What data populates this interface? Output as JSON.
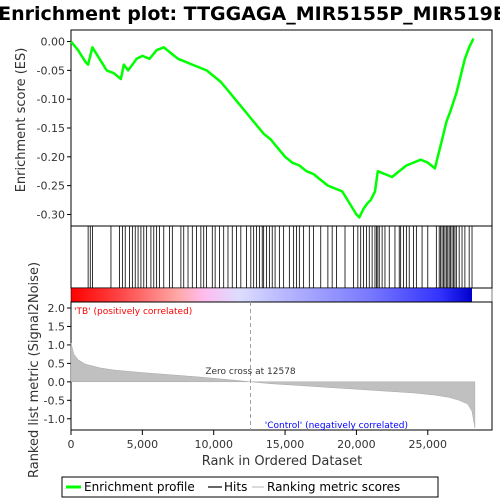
{
  "chart_data": {
    "type": "line",
    "title": "Enrichment plot: TTGGAGA_MIR5155P_MIR519E",
    "panels": {
      "es": {
        "ylabel": "Enrichment score (ES)",
        "ylim": [
          -0.32,
          0.02
        ],
        "yticks": [
          0.0,
          -0.05,
          -0.1,
          -0.15,
          -0.2,
          -0.25,
          -0.3
        ],
        "ytick_labels": [
          "0.00",
          "-0.05",
          "-0.10",
          "-0.15",
          "-0.20",
          "-0.25",
          "-0.30"
        ],
        "series": [
          {
            "name": "Enrichment profile",
            "color": "#00ff00",
            "x": [
              0,
              500,
              1000,
              1200,
              1500,
              2000,
              2500,
              3000,
              3500,
              3700,
              4000,
              4300,
              4600,
              5000,
              5500,
              6000,
              6500,
              7000,
              7500,
              8000,
              8500,
              9000,
              9500,
              10000,
              10500,
              11000,
              11500,
              12000,
              12500,
              13000,
              13500,
              14000,
              14500,
              15000,
              15500,
              16000,
              16500,
              17000,
              17500,
              18000,
              18500,
              19000,
              19500,
              20000,
              20200,
              20500,
              20800,
              21000,
              21300,
              21500,
              22000,
              22500,
              23000,
              23500,
              24000,
              24500,
              25000,
              25500,
              25800,
              26000,
              26300,
              26600,
              27000,
              27300,
              27600,
              27900,
              28200
            ],
            "y": [
              0.0,
              -0.015,
              -0.035,
              -0.04,
              -0.01,
              -0.03,
              -0.05,
              -0.055,
              -0.065,
              -0.04,
              -0.05,
              -0.04,
              -0.03,
              -0.025,
              -0.03,
              -0.015,
              -0.01,
              -0.02,
              -0.03,
              -0.035,
              -0.04,
              -0.045,
              -0.05,
              -0.06,
              -0.07,
              -0.085,
              -0.1,
              -0.115,
              -0.13,
              -0.145,
              -0.16,
              -0.17,
              -0.185,
              -0.2,
              -0.21,
              -0.215,
              -0.225,
              -0.23,
              -0.24,
              -0.25,
              -0.255,
              -0.26,
              -0.28,
              -0.3,
              -0.305,
              -0.29,
              -0.28,
              -0.275,
              -0.26,
              -0.225,
              -0.23,
              -0.235,
              -0.225,
              -0.215,
              -0.21,
              -0.205,
              -0.21,
              -0.22,
              -0.19,
              -0.17,
              -0.14,
              -0.12,
              -0.09,
              -0.06,
              -0.03,
              -0.01,
              0.005
            ]
          }
        ]
      },
      "hits": {
        "label": "Hits",
        "positions": [
          1200,
          1350,
          1500,
          2800,
          3400,
          3600,
          3800,
          4100,
          4300,
          4500,
          4700,
          4900,
          5100,
          5300,
          5600,
          5800,
          6000,
          6200,
          6500,
          6900,
          7100,
          7700,
          7900,
          8200,
          8500,
          8800,
          9100,
          9300,
          9500,
          9900,
          10100,
          10400,
          10700,
          11000,
          11300,
          11600,
          11900,
          12300,
          12600,
          12800,
          13000,
          13200,
          13400,
          13500,
          13700,
          13900,
          14100,
          14300,
          14600,
          14900,
          15300,
          15600,
          15800,
          16000,
          16300,
          16700,
          17000,
          17500,
          18000,
          18300,
          18600,
          19200,
          19800,
          20100,
          20300,
          20500,
          20700,
          20900,
          21100,
          21300,
          21400,
          21500,
          21600,
          21800,
          22000,
          22300,
          22700,
          23000,
          23100,
          23300,
          23500,
          23700,
          24000,
          24200,
          24600,
          25000,
          25600,
          25800,
          25900,
          26000,
          26100,
          26200,
          26300,
          26400,
          26500,
          26600,
          26700,
          26800,
          26900,
          27000,
          27200,
          27400,
          27600,
          27900,
          28100
        ]
      },
      "ranked": {
        "ylabel": "Ranked list metric (Signal2Noise)",
        "ylim": [
          -1.25,
          2.0
        ],
        "yticks": [
          2.0,
          1.5,
          1.0,
          0.5,
          0.0,
          -0.5,
          -1.0
        ],
        "ytick_labels": [
          "2.0",
          "1.5",
          "1.0",
          "0.5",
          "0.0",
          "-0.5",
          "-1.0"
        ],
        "x": [
          0,
          200,
          500,
          1000,
          2000,
          3000,
          5000,
          7000,
          9000,
          11000,
          12578,
          14000,
          16000,
          18000,
          20000,
          22000,
          24000,
          25500,
          26500,
          27200,
          27800,
          28100,
          28300
        ],
        "y": [
          1.05,
          0.75,
          0.6,
          0.48,
          0.38,
          0.32,
          0.25,
          0.19,
          0.13,
          0.06,
          0.0,
          -0.05,
          -0.1,
          -0.15,
          -0.2,
          -0.25,
          -0.3,
          -0.36,
          -0.42,
          -0.5,
          -0.6,
          -0.8,
          -1.25
        ],
        "zero_cross_label": "Zero cross at 12578",
        "zero_cross": 12578,
        "positive_label": "'TB' (positively correlated)",
        "negative_label": "'Control' (negatively correlated)"
      }
    },
    "xlabel": "Rank in Ordered Dataset",
    "xlim": [
      0,
      29500
    ],
    "xticks": [
      0,
      5000,
      10000,
      15000,
      20000,
      25000
    ],
    "xtick_labels": [
      "0",
      "5,000",
      "10,000",
      "15,000",
      "20,000",
      "25,000"
    ],
    "legend": {
      "placement": "bottom",
      "entries": [
        {
          "label": "Enrichment profile",
          "color": "#00ff00"
        },
        {
          "label": "Hits",
          "color": "#000000"
        },
        {
          "label": "Ranking metric scores",
          "color": "#c0c0c0"
        }
      ]
    },
    "colors": {
      "positive_label": "#ff0000",
      "negative_label": "#0000ff",
      "metric_fill": "#c0c0c0",
      "zero_cross_line": "#a0a0a0"
    }
  }
}
